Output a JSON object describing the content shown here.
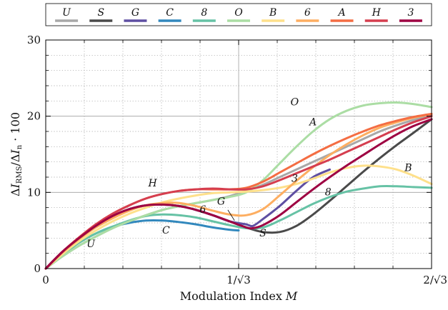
{
  "chart_data": {
    "type": "line",
    "xlabel_text": "Modulation Index ",
    "xlabel_var": "M",
    "ylabel_text": "ΔI_RMS / ΔI_n · 100",
    "xlim": [
      0,
      1.1547
    ],
    "ylim": [
      0,
      30
    ],
    "grid": true,
    "legend_position": "top",
    "x_ticks": [
      {
        "value": 0,
        "label": "0"
      },
      {
        "value": 0.57735,
        "label": "1/√3"
      },
      {
        "value": 1.1547,
        "label": "2/√3"
      }
    ],
    "y_ticks": [
      {
        "value": 0,
        "label": "0"
      },
      {
        "value": 10,
        "label": "10"
      },
      {
        "value": 20,
        "label": "20"
      },
      {
        "value": 30,
        "label": "30"
      }
    ],
    "series": [
      {
        "name": "U",
        "color": "#a8a8a8",
        "label": "U",
        "points": [
          [
            0.0,
            0
          ],
          [
            0.05,
            1.6
          ],
          [
            0.1,
            3.0
          ],
          [
            0.15,
            4.2
          ],
          [
            0.2,
            5.3
          ],
          [
            0.25,
            6.2
          ],
          [
            0.3,
            7.0
          ],
          [
            0.35,
            7.7
          ],
          [
            0.4,
            8.2
          ],
          [
            0.45,
            8.6
          ],
          [
            0.5,
            9.0
          ],
          [
            0.55,
            9.5
          ],
          [
            0.6,
            10.2
          ],
          [
            0.65,
            11.0
          ],
          [
            0.7,
            12.0
          ],
          [
            0.75,
            13.0
          ],
          [
            0.8,
            14.0
          ],
          [
            0.85,
            15.0
          ],
          [
            0.9,
            16.0
          ],
          [
            0.95,
            17.0
          ],
          [
            1.0,
            18.0
          ],
          [
            1.05,
            18.8
          ],
          [
            1.1,
            19.5
          ],
          [
            1.1547,
            20.1
          ]
        ]
      },
      {
        "name": "S",
        "color": "#4a4a4a",
        "label": "S",
        "points": [
          [
            0.0,
            0
          ],
          [
            0.05,
            2.2
          ],
          [
            0.1,
            4.0
          ],
          [
            0.15,
            5.6
          ],
          [
            0.2,
            6.9
          ],
          [
            0.25,
            7.8
          ],
          [
            0.3,
            8.3
          ],
          [
            0.35,
            8.4
          ],
          [
            0.4,
            8.2
          ],
          [
            0.45,
            7.7
          ],
          [
            0.5,
            7.0
          ],
          [
            0.55,
            6.2
          ],
          [
            0.6,
            5.4
          ],
          [
            0.65,
            4.8
          ],
          [
            0.7,
            4.8
          ],
          [
            0.75,
            5.6
          ],
          [
            0.8,
            7.1
          ],
          [
            0.85,
            8.9
          ],
          [
            0.9,
            10.8
          ],
          [
            0.95,
            12.7
          ],
          [
            1.0,
            14.5
          ],
          [
            1.05,
            16.2
          ],
          [
            1.1,
            17.8
          ],
          [
            1.1547,
            19.6
          ]
        ]
      },
      {
        "name": "G",
        "color": "#5e4fa2",
        "label": "G",
        "points": [
          [
            0.0,
            0
          ],
          [
            0.05,
            2.2
          ],
          [
            0.1,
            4.0
          ],
          [
            0.15,
            5.6
          ],
          [
            0.2,
            6.9
          ],
          [
            0.25,
            7.8
          ],
          [
            0.3,
            8.3
          ],
          [
            0.35,
            8.4
          ],
          [
            0.4,
            8.2
          ],
          [
            0.45,
            7.7
          ],
          [
            0.5,
            7.0
          ],
          [
            0.55,
            6.2
          ],
          [
            0.6,
            5.8
          ],
          [
            0.62,
            5.6
          ],
          [
            0.65,
            6.5
          ],
          [
            0.7,
            8.2
          ],
          [
            0.75,
            10.2
          ],
          [
            0.8,
            12.0
          ],
          [
            0.85,
            13.0
          ]
        ]
      },
      {
        "name": "C",
        "color": "#3288bd",
        "label": "C",
        "points": [
          [
            0.0,
            0
          ],
          [
            0.05,
            1.8
          ],
          [
            0.1,
            3.4
          ],
          [
            0.15,
            4.6
          ],
          [
            0.2,
            5.5
          ],
          [
            0.25,
            6.0
          ],
          [
            0.3,
            6.3
          ],
          [
            0.35,
            6.3
          ],
          [
            0.4,
            6.1
          ],
          [
            0.45,
            5.8
          ],
          [
            0.5,
            5.4
          ],
          [
            0.55,
            5.1
          ],
          [
            0.57735,
            5.0
          ]
        ]
      },
      {
        "name": "8",
        "color": "#66c2a5",
        "label": "8",
        "points": [
          [
            0.0,
            0
          ],
          [
            0.05,
            1.8
          ],
          [
            0.1,
            3.4
          ],
          [
            0.15,
            4.6
          ],
          [
            0.2,
            5.5
          ],
          [
            0.25,
            6.3
          ],
          [
            0.3,
            6.9
          ],
          [
            0.35,
            7.1
          ],
          [
            0.4,
            7.0
          ],
          [
            0.45,
            6.7
          ],
          [
            0.5,
            6.2
          ],
          [
            0.55,
            5.7
          ],
          [
            0.6,
            5.3
          ],
          [
            0.65,
            5.4
          ],
          [
            0.7,
            6.3
          ],
          [
            0.75,
            7.4
          ],
          [
            0.8,
            8.5
          ],
          [
            0.85,
            9.4
          ],
          [
            0.9,
            10.1
          ],
          [
            0.95,
            10.5
          ],
          [
            1.0,
            10.8
          ],
          [
            1.05,
            10.8
          ],
          [
            1.1,
            10.7
          ],
          [
            1.1547,
            10.6
          ]
        ]
      },
      {
        "name": "O",
        "color": "#abdda4",
        "label": "O",
        "points": [
          [
            0.0,
            0
          ],
          [
            0.05,
            1.6
          ],
          [
            0.1,
            3.0
          ],
          [
            0.15,
            4.2
          ],
          [
            0.2,
            5.3
          ],
          [
            0.25,
            6.2
          ],
          [
            0.3,
            7.0
          ],
          [
            0.35,
            7.7
          ],
          [
            0.4,
            8.2
          ],
          [
            0.45,
            8.6
          ],
          [
            0.5,
            9.0
          ],
          [
            0.55,
            9.4
          ],
          [
            0.6,
            10.0
          ],
          [
            0.65,
            11.6
          ],
          [
            0.7,
            13.8
          ],
          [
            0.75,
            16.0
          ],
          [
            0.8,
            18.0
          ],
          [
            0.85,
            19.6
          ],
          [
            0.9,
            20.7
          ],
          [
            0.95,
            21.4
          ],
          [
            1.0,
            21.7
          ],
          [
            1.05,
            21.8
          ],
          [
            1.1,
            21.6
          ],
          [
            1.1547,
            21.2
          ]
        ]
      },
      {
        "name": "B",
        "color": "#fee08b",
        "label": "B",
        "points": [
          [
            0.0,
            0
          ],
          [
            0.05,
            1.9
          ],
          [
            0.1,
            3.6
          ],
          [
            0.15,
            5.0
          ],
          [
            0.2,
            6.2
          ],
          [
            0.25,
            7.2
          ],
          [
            0.3,
            8.0
          ],
          [
            0.35,
            8.7
          ],
          [
            0.4,
            9.2
          ],
          [
            0.45,
            9.6
          ],
          [
            0.5,
            9.9
          ],
          [
            0.55,
            10.0
          ],
          [
            0.6,
            10.1
          ],
          [
            0.65,
            10.3
          ],
          [
            0.7,
            10.6
          ],
          [
            0.75,
            11.1
          ],
          [
            0.8,
            11.8
          ],
          [
            0.85,
            12.6
          ],
          [
            0.9,
            13.2
          ],
          [
            0.95,
            13.5
          ],
          [
            1.0,
            13.4
          ],
          [
            1.05,
            13.0
          ],
          [
            1.1,
            12.2
          ],
          [
            1.1547,
            11.1
          ]
        ]
      },
      {
        "name": "6",
        "color": "#fdae61",
        "label": "6",
        "points": [
          [
            0.0,
            0
          ],
          [
            0.05,
            2.1
          ],
          [
            0.1,
            3.9
          ],
          [
            0.15,
            5.4
          ],
          [
            0.2,
            6.6
          ],
          [
            0.25,
            7.6
          ],
          [
            0.3,
            8.3
          ],
          [
            0.35,
            8.6
          ],
          [
            0.4,
            8.6
          ],
          [
            0.45,
            8.2
          ],
          [
            0.5,
            7.6
          ],
          [
            0.55,
            7.1
          ],
          [
            0.6,
            7.0
          ],
          [
            0.65,
            7.8
          ],
          [
            0.7,
            9.6
          ],
          [
            0.75,
            11.5
          ],
          [
            0.8,
            13.3
          ],
          [
            0.85,
            14.9
          ],
          [
            0.9,
            16.3
          ],
          [
            0.95,
            17.5
          ],
          [
            1.0,
            18.5
          ],
          [
            1.05,
            19.2
          ],
          [
            1.1,
            19.8
          ],
          [
            1.1547,
            20.3
          ]
        ]
      },
      {
        "name": "A",
        "color": "#f46d43",
        "label": "A",
        "points": [
          [
            0.0,
            0
          ],
          [
            0.05,
            2.2
          ],
          [
            0.1,
            4.1
          ],
          [
            0.15,
            5.8
          ],
          [
            0.2,
            7.2
          ],
          [
            0.25,
            8.3
          ],
          [
            0.3,
            9.2
          ],
          [
            0.35,
            9.8
          ],
          [
            0.4,
            10.2
          ],
          [
            0.45,
            10.4
          ],
          [
            0.5,
            10.4
          ],
          [
            0.55,
            10.4
          ],
          [
            0.6,
            10.6
          ],
          [
            0.65,
            11.4
          ],
          [
            0.7,
            12.6
          ],
          [
            0.75,
            13.8
          ],
          [
            0.8,
            15.0
          ],
          [
            0.85,
            16.1
          ],
          [
            0.9,
            17.1
          ],
          [
            0.95,
            18.0
          ],
          [
            1.0,
            18.8
          ],
          [
            1.05,
            19.4
          ],
          [
            1.1,
            19.9
          ],
          [
            1.1547,
            20.3
          ]
        ]
      },
      {
        "name": "H",
        "color": "#d53e4f",
        "label": "H",
        "points": [
          [
            0.0,
            0
          ],
          [
            0.05,
            2.2
          ],
          [
            0.1,
            4.1
          ],
          [
            0.15,
            5.8
          ],
          [
            0.2,
            7.2
          ],
          [
            0.25,
            8.3
          ],
          [
            0.3,
            9.2
          ],
          [
            0.35,
            9.8
          ],
          [
            0.4,
            10.2
          ],
          [
            0.45,
            10.4
          ],
          [
            0.5,
            10.5
          ],
          [
            0.55,
            10.4
          ],
          [
            0.6,
            10.4
          ],
          [
            0.65,
            10.8
          ],
          [
            0.7,
            11.6
          ],
          [
            0.75,
            12.5
          ],
          [
            0.8,
            13.4
          ],
          [
            0.85,
            14.3
          ],
          [
            0.9,
            15.3
          ],
          [
            0.95,
            16.3
          ],
          [
            1.0,
            17.3
          ],
          [
            1.05,
            18.3
          ],
          [
            1.1,
            19.2
          ],
          [
            1.1547,
            20.0
          ]
        ]
      },
      {
        "name": "3",
        "color": "#9e0142",
        "label": "3",
        "points": [
          [
            0.0,
            0
          ],
          [
            0.05,
            2.2
          ],
          [
            0.1,
            4.0
          ],
          [
            0.15,
            5.6
          ],
          [
            0.2,
            6.9
          ],
          [
            0.25,
            7.8
          ],
          [
            0.3,
            8.3
          ],
          [
            0.35,
            8.4
          ],
          [
            0.4,
            8.2
          ],
          [
            0.45,
            7.7
          ],
          [
            0.5,
            7.0
          ],
          [
            0.55,
            6.2
          ],
          [
            0.6,
            5.4
          ],
          [
            0.62,
            5.3
          ],
          [
            0.65,
            5.7
          ],
          [
            0.7,
            7.0
          ],
          [
            0.75,
            8.7
          ],
          [
            0.8,
            10.4
          ],
          [
            0.85,
            12.0
          ],
          [
            0.9,
            13.5
          ],
          [
            0.95,
            14.9
          ],
          [
            1.0,
            16.3
          ],
          [
            1.05,
            17.6
          ],
          [
            1.1,
            18.7
          ],
          [
            1.1547,
            19.6
          ]
        ]
      }
    ],
    "annotations": [
      {
        "text": "U",
        "x": 0.135,
        "y": 2.8
      },
      {
        "text": "C",
        "x": 0.36,
        "y": 4.6
      },
      {
        "text": "H",
        "x": 0.32,
        "y": 10.8
      },
      {
        "text": "6",
        "x": 0.47,
        "y": 7.3
      },
      {
        "text": "G",
        "x": 0.525,
        "y": 8.4
      },
      {
        "text": "S",
        "x": 0.65,
        "y": 4.2
      },
      {
        "text": "3",
        "x": 0.745,
        "y": 11.4
      },
      {
        "text": "8",
        "x": 0.845,
        "y": 9.6
      },
      {
        "text": "O",
        "x": 0.745,
        "y": 21.4
      },
      {
        "text": "A",
        "x": 0.8,
        "y": 18.8
      },
      {
        "text": "B",
        "x": 1.085,
        "y": 12.8
      }
    ]
  }
}
